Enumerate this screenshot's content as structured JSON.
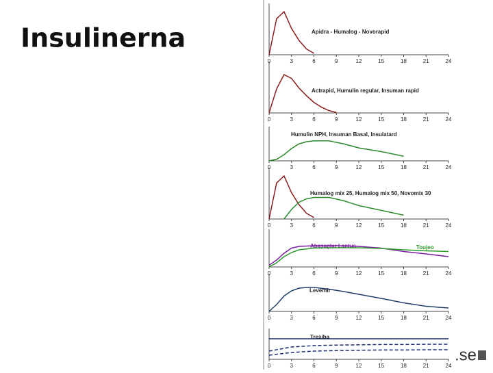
{
  "title": "Insulinerna",
  "brand": ".se",
  "chart_data": [
    {
      "type": "line",
      "title": "Apidra - Humalog - Novorapid",
      "x": [
        0,
        1,
        2,
        3,
        4,
        5,
        6
      ],
      "xlim": [
        0,
        24
      ],
      "xticks": [
        0,
        3,
        6,
        9,
        12,
        15,
        18,
        21,
        24
      ],
      "ylim": [
        0,
        1
      ],
      "series": [
        {
          "color": "#8b1a1a",
          "values": [
            0,
            0.75,
            0.9,
            0.55,
            0.3,
            0.12,
            0.03
          ]
        }
      ]
    },
    {
      "type": "line",
      "title": "Actrapid, Humulin regular, Insuman rapid",
      "x": [
        0,
        1,
        2,
        3,
        4,
        5,
        6,
        7,
        8,
        9
      ],
      "xlim": [
        0,
        24
      ],
      "xticks": [
        0,
        3,
        6,
        9,
        12,
        15,
        18,
        21,
        24
      ],
      "ylim": [
        0,
        1
      ],
      "series": [
        {
          "color": "#8b1a1a",
          "values": [
            0,
            0.5,
            0.8,
            0.72,
            0.52,
            0.36,
            0.22,
            0.12,
            0.05,
            0.01
          ]
        }
      ]
    },
    {
      "type": "line",
      "title": "Humulin NPH, Insuman Basal, Insulatard",
      "x": [
        0,
        1,
        2,
        3,
        4,
        5,
        6,
        8,
        10,
        12,
        15,
        18
      ],
      "xlim": [
        0,
        24
      ],
      "xticks": [
        0,
        3,
        6,
        9,
        12,
        15,
        18,
        21,
        24
      ],
      "ylim": [
        0,
        1
      ],
      "series": [
        {
          "color": "#2a8a2a",
          "values": [
            0,
            0.05,
            0.2,
            0.4,
            0.55,
            0.62,
            0.65,
            0.65,
            0.55,
            0.42,
            0.3,
            0.15
          ]
        }
      ]
    },
    {
      "type": "line",
      "title": "Humalog mix 25, Humalog mix 50, Novomix 30",
      "x": [
        0,
        1,
        2,
        3,
        4,
        5,
        6,
        8,
        10,
        12,
        15,
        18
      ],
      "xlim": [
        0,
        24
      ],
      "xticks": [
        0,
        3,
        6,
        9,
        12,
        15,
        18,
        21,
        24
      ],
      "ylim": [
        0,
        1
      ],
      "series": [
        {
          "color": "#8b1a1a",
          "values": [
            0,
            0.75,
            0.9,
            0.55,
            0.3,
            0.12,
            0.03,
            null,
            null,
            null,
            null,
            null
          ]
        },
        {
          "color": "#2a8a2a",
          "values": [
            null,
            null,
            0,
            0.2,
            0.35,
            0.42,
            0.45,
            0.45,
            0.38,
            0.28,
            0.18,
            0.08
          ]
        }
      ]
    },
    {
      "type": "line",
      "x": [
        0,
        1,
        2,
        3,
        4,
        6,
        9,
        12,
        15,
        18,
        21,
        24
      ],
      "xlim": [
        0,
        24
      ],
      "xticks": [
        0,
        3,
        6,
        9,
        12,
        15,
        18,
        21,
        24
      ],
      "ylim": [
        0,
        1
      ],
      "series": [
        {
          "name": "Abasaglar Lantus",
          "color": "#7a1fa0",
          "values": [
            0.05,
            0.2,
            0.4,
            0.55,
            0.6,
            0.62,
            0.62,
            0.6,
            0.55,
            0.45,
            0.38,
            0.3
          ]
        },
        {
          "name": "Toujeo",
          "color": "#2a9a2a",
          "values": [
            0,
            0.12,
            0.3,
            0.42,
            0.5,
            0.55,
            0.56,
            0.56,
            0.54,
            0.5,
            0.47,
            0.45
          ]
        }
      ]
    },
    {
      "type": "line",
      "title": "Levemir",
      "x": [
        0,
        1,
        2,
        3,
        4,
        5,
        6,
        8,
        10,
        12,
        15,
        18,
        21,
        24
      ],
      "xlim": [
        0,
        24
      ],
      "xticks": [
        0,
        3,
        6,
        9,
        12,
        15,
        18,
        21,
        24
      ],
      "ylim": [
        0,
        1
      ],
      "series": [
        {
          "color": "#1f3f6a",
          "values": [
            0,
            0.2,
            0.45,
            0.6,
            0.68,
            0.7,
            0.7,
            0.65,
            0.58,
            0.5,
            0.38,
            0.25,
            0.15,
            0.1
          ]
        }
      ]
    },
    {
      "type": "line",
      "title": "Tresiba",
      "x": [
        0,
        3,
        6,
        9,
        12,
        15,
        18,
        21,
        24
      ],
      "xlim": [
        0,
        24
      ],
      "xticks": [
        0,
        3,
        6,
        9,
        12,
        15,
        18,
        21,
        24
      ],
      "ylim": [
        0,
        1
      ],
      "series": [
        {
          "color": "#1a2a6a",
          "values": [
            0.75,
            0.75,
            0.75,
            0.75,
            0.75,
            0.75,
            0.75,
            0.75,
            0.75
          ]
        },
        {
          "color": "#1a2a6a",
          "dash": true,
          "values": [
            0.3,
            0.45,
            0.5,
            0.52,
            0.53,
            0.54,
            0.54,
            0.55,
            0.55
          ]
        },
        {
          "color": "#1a2a6a",
          "dash": true,
          "values": [
            0.15,
            0.25,
            0.3,
            0.32,
            0.33,
            0.34,
            0.34,
            0.35,
            0.35
          ]
        }
      ]
    }
  ]
}
